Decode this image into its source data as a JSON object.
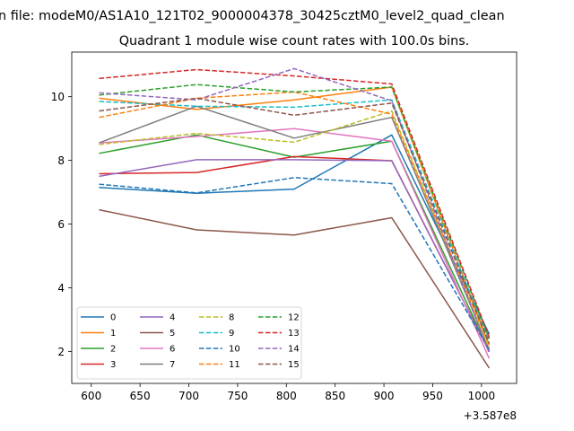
{
  "chart_data": {
    "type": "line",
    "suptitle": "n file: modeM0/AS1A10_121T02_9000004378_30425cztM0_level2_quad_clean",
    "title": "Quadrant 1 module wise count rates with 100.0s bins.",
    "xlabel": "",
    "ylabel": "",
    "offset_label": "+3.587e8",
    "x": [
      608,
      708,
      808,
      908,
      1008
    ],
    "xlim": [
      580,
      1036
    ],
    "ylim": [
      1.0,
      11.4
    ],
    "xticks": [
      600,
      650,
      700,
      750,
      800,
      850,
      900,
      950,
      1000
    ],
    "xtick_labels": [
      "600",
      "650",
      "700",
      "750",
      "800",
      "850",
      "900",
      "950",
      "1000"
    ],
    "yticks": [
      2,
      4,
      6,
      8,
      10
    ],
    "ytick_labels": [
      "2",
      "4",
      "6",
      "8",
      "10"
    ],
    "grid": false,
    "legend_position": "lower-left",
    "legend_columns": 4,
    "series": [
      {
        "name": "0",
        "color": "#1f77b4",
        "dash": "solid",
        "values": [
          7.15,
          6.97,
          7.1,
          8.8,
          2.55
        ]
      },
      {
        "name": "1",
        "color": "#ff7f0e",
        "dash": "solid",
        "values": [
          9.95,
          9.6,
          9.9,
          10.3,
          2.2
        ]
      },
      {
        "name": "2",
        "color": "#2ca02c",
        "dash": "solid",
        "values": [
          8.22,
          8.8,
          8.1,
          8.6,
          2.0
        ]
      },
      {
        "name": "3",
        "color": "#d62728",
        "dash": "solid",
        "values": [
          7.58,
          7.62,
          8.12,
          7.99,
          2.0
        ]
      },
      {
        "name": "4",
        "color": "#9467bd",
        "dash": "solid",
        "values": [
          7.5,
          8.02,
          8.02,
          7.99,
          2.0
        ]
      },
      {
        "name": "5",
        "color": "#8c564b",
        "dash": "solid",
        "values": [
          6.45,
          5.82,
          5.66,
          6.2,
          1.48
        ]
      },
      {
        "name": "6",
        "color": "#e377c2",
        "dash": "solid",
        "values": [
          8.55,
          8.75,
          9.0,
          8.6,
          1.78
        ]
      },
      {
        "name": "7",
        "color": "#7f7f7f",
        "dash": "solid",
        "values": [
          8.55,
          9.7,
          8.7,
          9.35,
          2.05
        ]
      },
      {
        "name": "8",
        "color": "#bcbd22",
        "dash": "dashed",
        "values": [
          8.5,
          8.85,
          8.57,
          9.55,
          2.1
        ]
      },
      {
        "name": "9",
        "color": "#17becf",
        "dash": "dashed",
        "values": [
          9.85,
          9.7,
          9.67,
          9.9,
          2.35
        ]
      },
      {
        "name": "10",
        "color": "#1f77b4",
        "dash": "dashed",
        "values": [
          7.25,
          6.98,
          7.46,
          7.27,
          2.05
        ]
      },
      {
        "name": "11",
        "color": "#ff7f0e",
        "dash": "dashed",
        "values": [
          9.35,
          9.95,
          10.15,
          9.45,
          2.2
        ]
      },
      {
        "name": "12",
        "color": "#2ca02c",
        "dash": "dashed",
        "values": [
          10.05,
          10.38,
          10.15,
          10.3,
          2.4
        ]
      },
      {
        "name": "13",
        "color": "#d62728",
        "dash": "dashed",
        "values": [
          10.57,
          10.85,
          10.65,
          10.4,
          2.45
        ]
      },
      {
        "name": "14",
        "color": "#9467bd",
        "dash": "dashed",
        "values": [
          10.12,
          9.9,
          10.88,
          9.87,
          1.95
        ]
      },
      {
        "name": "15",
        "color": "#8c564b",
        "dash": "dashed",
        "values": [
          9.55,
          9.95,
          9.42,
          9.8,
          2.25
        ]
      }
    ]
  }
}
